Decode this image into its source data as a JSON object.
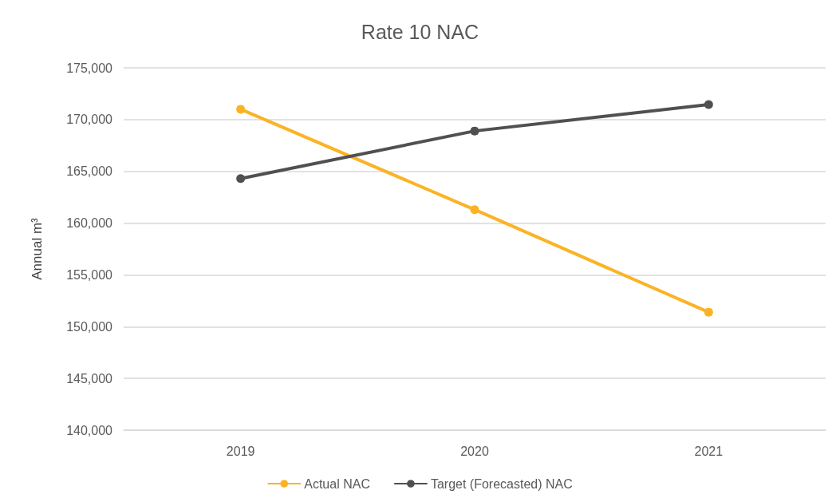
{
  "chart_data": {
    "type": "line",
    "title": "Rate 10 NAC",
    "ylabel": "Annual m³",
    "categories": [
      "2019",
      "2020",
      "2021"
    ],
    "series": [
      {
        "name": "Actual NAC",
        "color": "#fbb325",
        "values": [
          171000,
          161300,
          151400
        ]
      },
      {
        "name": "Target (Forecasted) NAC",
        "color": "#505050",
        "values": [
          164300,
          168900,
          171450
        ]
      }
    ],
    "ylim": [
      140000,
      175000
    ],
    "yticks": [
      {
        "value": 140000,
        "label": "140,000"
      },
      {
        "value": 145000,
        "label": "145,000"
      },
      {
        "value": 150000,
        "label": "150,000"
      },
      {
        "value": 155000,
        "label": "155,000"
      },
      {
        "value": 160000,
        "label": "160,000"
      },
      {
        "value": 165000,
        "label": "165,000"
      },
      {
        "value": 170000,
        "label": "170,000"
      },
      {
        "value": 175000,
        "label": "175,000"
      }
    ],
    "grid": "y",
    "legend": "bottom",
    "marker": "circle",
    "line_style": "solid"
  }
}
